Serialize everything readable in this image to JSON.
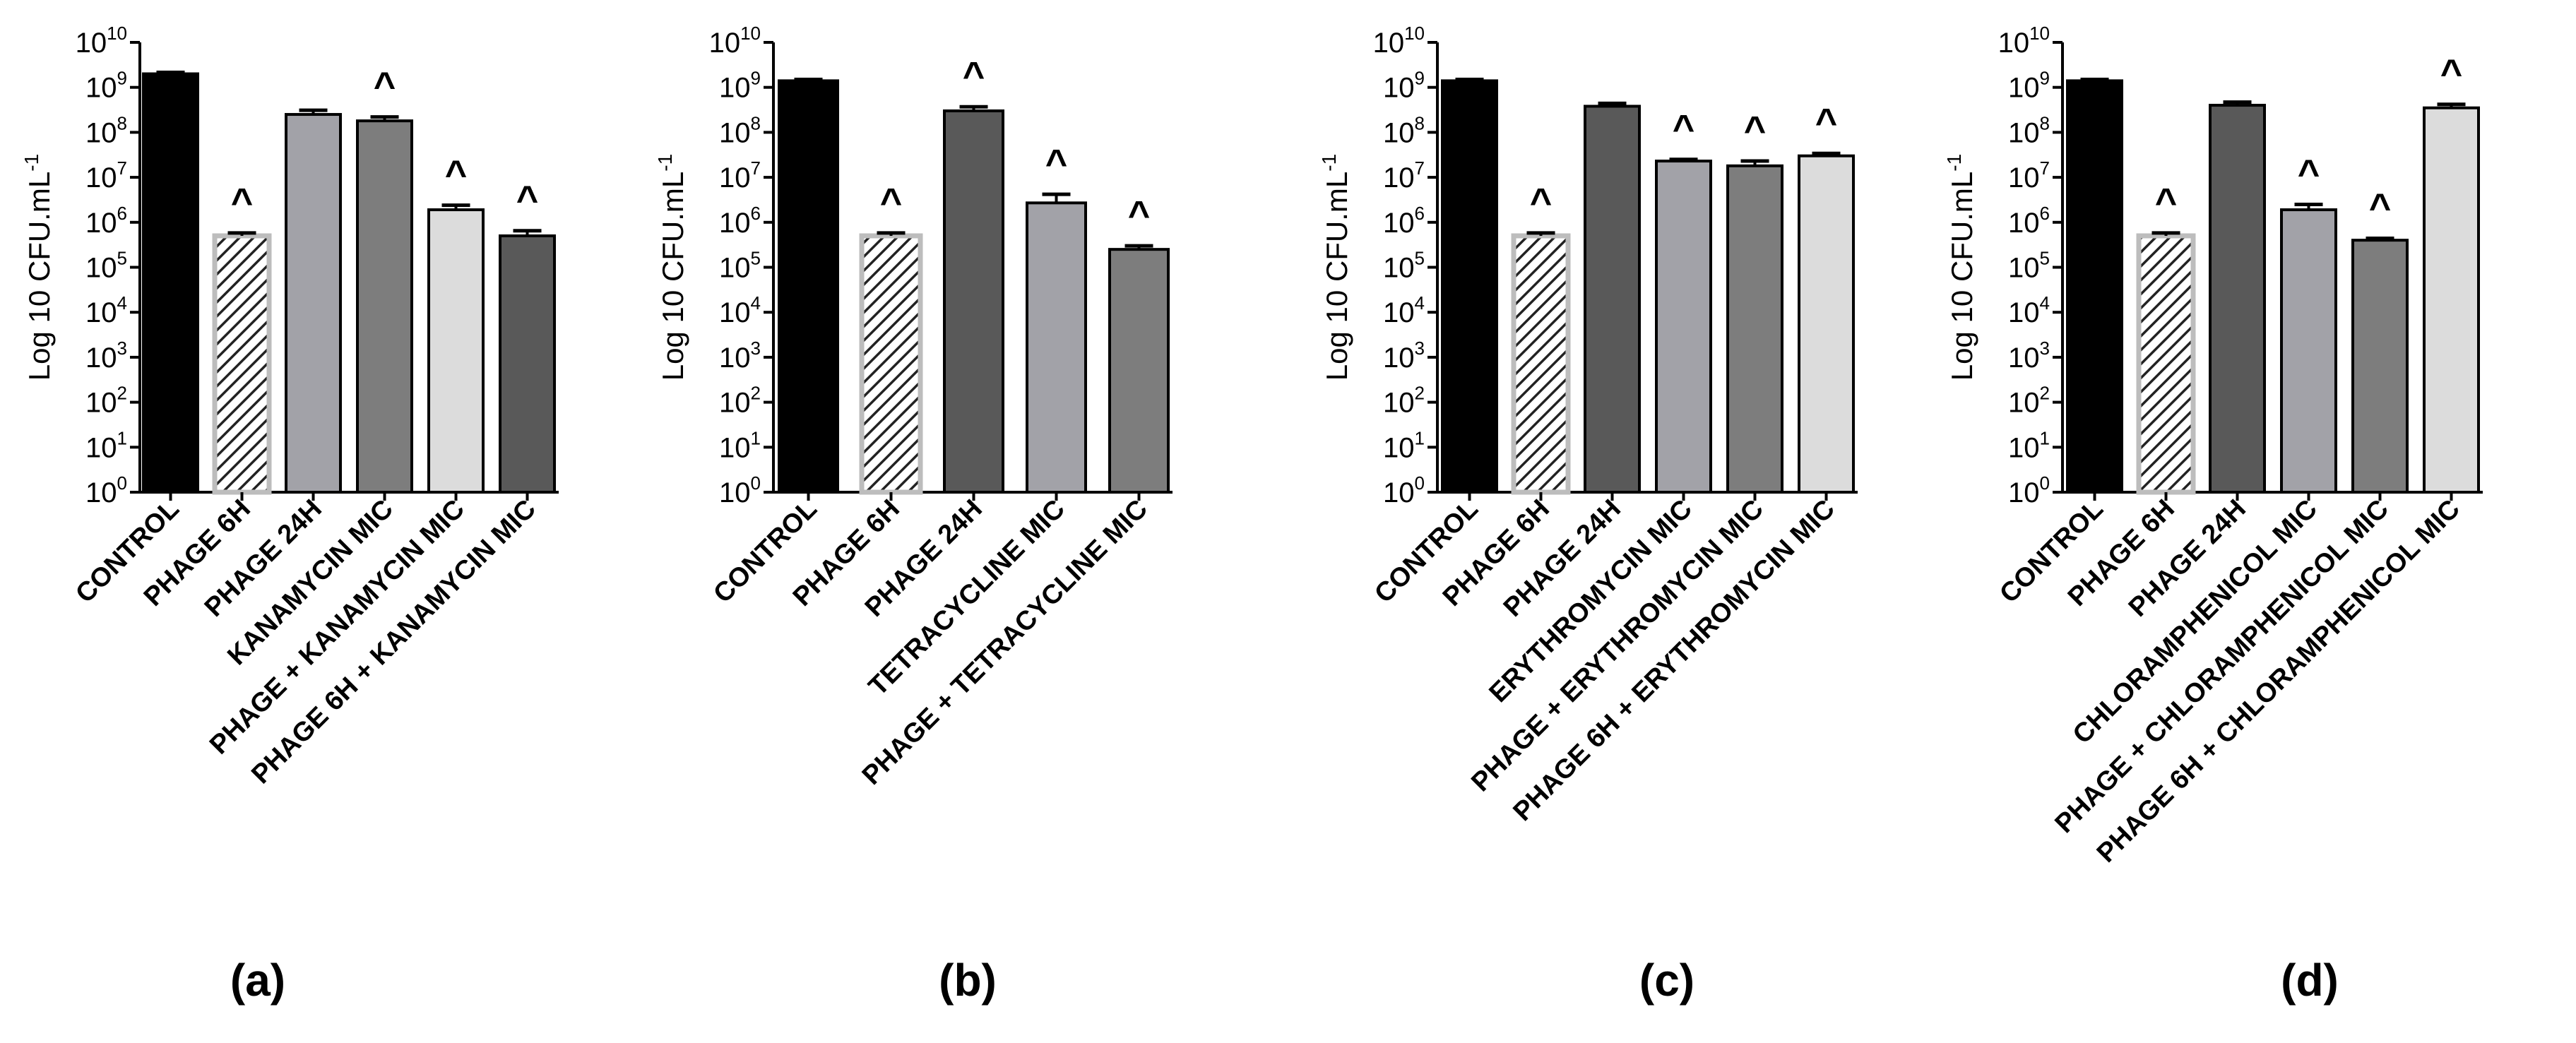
{
  "chart_data": [
    {
      "type": "bar",
      "panel": "(a)",
      "ylabel": "Log 10 CFU.mL",
      "ylabel_sup": "-1",
      "yscale": "log10",
      "ylim": [
        1,
        10000000000
      ],
      "ytick_exponents": [
        0,
        1,
        2,
        3,
        4,
        5,
        6,
        7,
        8,
        9,
        10
      ],
      "categories": [
        "CONTROL",
        "PHAGE 6H",
        "PHAGE 24H",
        "KANAMYCIN MIC",
        "PHAGE + KANAMYCIN MIC",
        "PHAGE 6H + KANAMYCIN MIC"
      ],
      "values": [
        2000000000,
        500000,
        250000000,
        180000000,
        1900000,
        500000
      ],
      "errors": [
        150000000,
        80000,
        60000000,
        40000000,
        500000,
        150000
      ],
      "annotations": [
        "",
        "^",
        "",
        "^",
        "^",
        "^"
      ],
      "colors": [
        "#000000",
        "hatch",
        "#a2a2a8",
        "#7d7d7d",
        "#dcdcdc",
        "#595959"
      ]
    },
    {
      "type": "bar",
      "panel": "(b)",
      "ylabel": "Log 10 CFU.mL",
      "ylabel_sup": "-1",
      "yscale": "log10",
      "ylim": [
        1,
        10000000000
      ],
      "ytick_exponents": [
        0,
        1,
        2,
        3,
        4,
        5,
        6,
        7,
        8,
        9,
        10
      ],
      "categories": [
        "CONTROL",
        "PHAGE 6H",
        "PHAGE 24H",
        "TETRACYCLINE MIC",
        "PHAGE + TETRACYCLINE MIC"
      ],
      "values": [
        1400000000,
        500000,
        300000000,
        2700000,
        250000
      ],
      "errors": [
        100000000,
        80000,
        70000000,
        1500000,
        50000
      ],
      "annotations": [
        "",
        "^",
        "^",
        "^",
        "^"
      ],
      "colors": [
        "#000000",
        "hatch",
        "#595959",
        "#a2a2a8",
        "#7d7d7d"
      ]
    },
    {
      "type": "bar",
      "panel": "(c)",
      "ylabel": "Log 10 CFU.mL",
      "ylabel_sup": "-1",
      "yscale": "log10",
      "ylim": [
        1,
        10000000000
      ],
      "ytick_exponents": [
        0,
        1,
        2,
        3,
        4,
        5,
        6,
        7,
        8,
        9,
        10
      ],
      "categories": [
        "CONTROL",
        "PHAGE 6H",
        "PHAGE 24H",
        "ERYTHROMYCIN MIC",
        "PHAGE + ERYTHROMYCIN MIC",
        "PHAGE 6H + ERYTHROMYCIN MIC"
      ],
      "values": [
        1400000000,
        500000,
        380000000,
        23000000,
        18000000,
        30000000
      ],
      "errors": [
        100000000,
        80000,
        60000000,
        2000000,
        5000000,
        4000000
      ],
      "annotations": [
        "",
        "^",
        "",
        "^",
        "^",
        "^"
      ],
      "colors": [
        "#000000",
        "hatch",
        "#595959",
        "#a2a2a8",
        "#7d7d7d",
        "#dcdcdc"
      ]
    },
    {
      "type": "bar",
      "panel": "(d)",
      "ylabel": "Log 10 CFU.mL",
      "ylabel_sup": "-1",
      "yscale": "log10",
      "ylim": [
        1,
        10000000000
      ],
      "ytick_exponents": [
        0,
        1,
        2,
        3,
        4,
        5,
        6,
        7,
        8,
        9,
        10
      ],
      "categories": [
        "CONTROL",
        "PHAGE 6H",
        "PHAGE 24H",
        "CHLORAMPHENICOL MIC",
        "PHAGE + CHLORAMPHENICOL MIC",
        "PHAGE 6H + CHLORAMPHENICOL MIC"
      ],
      "values": [
        1400000000,
        500000,
        400000000,
        1900000,
        400000,
        350000000
      ],
      "errors": [
        100000000,
        80000,
        70000000,
        600000,
        40000,
        70000000
      ],
      "annotations": [
        "",
        "^",
        "",
        "^",
        "^",
        "^"
      ],
      "colors": [
        "#000000",
        "hatch",
        "#595959",
        "#a2a2a8",
        "#7d7d7d",
        "#dcdcdc"
      ]
    }
  ]
}
